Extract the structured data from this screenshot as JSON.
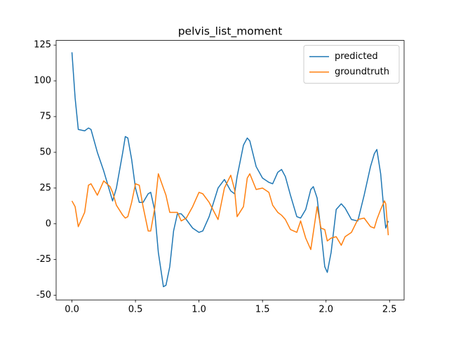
{
  "chart_data": {
    "type": "line",
    "title": "pelvis_list_moment",
    "x": [
      0,
      0.025,
      0.05,
      0.1,
      0.13,
      0.15,
      0.2,
      0.25,
      0.3,
      0.32,
      0.35,
      0.4,
      0.42,
      0.44,
      0.47,
      0.5,
      0.53,
      0.56,
      0.6,
      0.62,
      0.65,
      0.68,
      0.72,
      0.74,
      0.77,
      0.8,
      0.83,
      0.86,
      0.9,
      0.95,
      1.0,
      1.03,
      1.08,
      1.15,
      1.2,
      1.25,
      1.28,
      1.3,
      1.35,
      1.38,
      1.4,
      1.45,
      1.5,
      1.55,
      1.58,
      1.62,
      1.65,
      1.68,
      1.72,
      1.77,
      1.8,
      1.84,
      1.88,
      1.9,
      1.93,
      1.96,
      1.99,
      2.01,
      2.04,
      2.08,
      2.12,
      2.15,
      2.2,
      2.25,
      2.3,
      2.35,
      2.38,
      2.4,
      2.43,
      2.46,
      2.47,
      2.49
    ],
    "series": [
      {
        "name": "predicted",
        "color": "#1f77b4",
        "values": [
          120,
          88,
          66,
          65,
          67,
          66,
          50,
          37,
          22,
          16,
          25,
          50,
          61,
          60,
          45,
          25,
          15,
          15,
          21,
          22,
          10,
          -20,
          -44,
          -43,
          -30,
          -5,
          7,
          7,
          3,
          -3,
          -6,
          -5,
          5,
          25,
          31,
          23,
          21,
          33,
          55,
          60,
          58,
          40,
          32,
          29,
          28,
          36,
          38,
          33,
          20,
          5,
          4,
          10,
          24,
          26,
          18,
          -5,
          -30,
          -34,
          -20,
          10,
          14,
          11,
          3,
          2,
          20,
          40,
          49,
          52,
          35,
          5,
          -3,
          2
        ]
      },
      {
        "name": "groundtruth",
        "color": "#ff7f0e",
        "values": [
          16,
          12,
          -2,
          8,
          27,
          28,
          20,
          30,
          26,
          22,
          13,
          6,
          4,
          5,
          15,
          28,
          27,
          12,
          -5,
          -5,
          10,
          35,
          25,
          20,
          8,
          8,
          8,
          2,
          4,
          12,
          22,
          21,
          15,
          3,
          25,
          34,
          24,
          5,
          12,
          32,
          35,
          24,
          25,
          22,
          13,
          8,
          6,
          3,
          -4,
          -6,
          2,
          -10,
          -18,
          -6,
          12,
          -3,
          -4,
          -12,
          -10,
          -9,
          -15,
          -9,
          -6,
          3,
          4,
          -2,
          -3,
          3,
          10,
          16,
          14,
          -8
        ]
      }
    ],
    "xlim": [
      -0.1245,
      2.6145
    ],
    "ylim": [
      -53.25,
      128.25
    ],
    "xticks": [
      {
        "value": 0,
        "label": "0.0"
      },
      0.5,
      {
        "value": 1,
        "label": "1.0"
      },
      1.5,
      {
        "value": 2,
        "label": "2.0"
      },
      2.5
    ],
    "yticks": [
      -50,
      -25,
      0,
      25,
      50,
      75,
      100,
      125
    ],
    "legend": "upper right"
  }
}
